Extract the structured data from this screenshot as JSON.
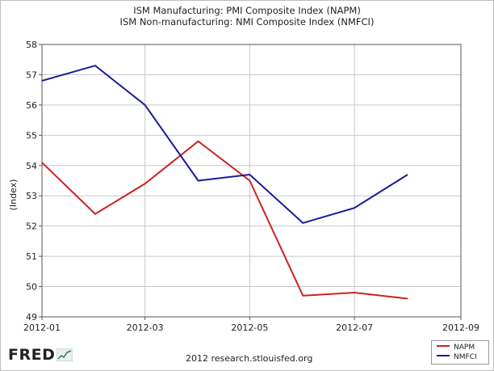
{
  "header": {
    "title_line1": "ISM Manufacturing: PMI Composite Index (NAPM)",
    "title_line2": "ISM Non-manufacturing: NMI Composite Index (NMFCI)"
  },
  "footer": {
    "logo_text": "FRED",
    "source_text": "2012 research.stlouisfed.org"
  },
  "chart_data": {
    "type": "line",
    "ylabel": "(Index)",
    "xlabel": "",
    "ylim": [
      49,
      58
    ],
    "yticks": [
      49,
      50,
      51,
      52,
      53,
      54,
      55,
      56,
      57,
      58
    ],
    "xlim": [
      "2012-01-01",
      "2012-09-01"
    ],
    "xticks": [
      "2012-01",
      "2012-03",
      "2012-05",
      "2012-07",
      "2012-09"
    ],
    "grid": true,
    "legend_position": "bottom-right",
    "x": [
      "2012-01-01",
      "2012-02-01",
      "2012-03-01",
      "2012-04-01",
      "2012-05-01",
      "2012-06-01",
      "2012-07-01",
      "2012-08-01"
    ],
    "series": [
      {
        "name": "NAPM",
        "color": "#cc2222",
        "values": [
          54.1,
          52.4,
          53.4,
          54.8,
          53.5,
          49.7,
          49.8,
          49.6
        ]
      },
      {
        "name": "NMFCI",
        "color": "#1a1a99",
        "values": [
          56.8,
          57.3,
          56.0,
          53.5,
          53.7,
          52.1,
          52.6,
          53.7
        ]
      }
    ]
  }
}
